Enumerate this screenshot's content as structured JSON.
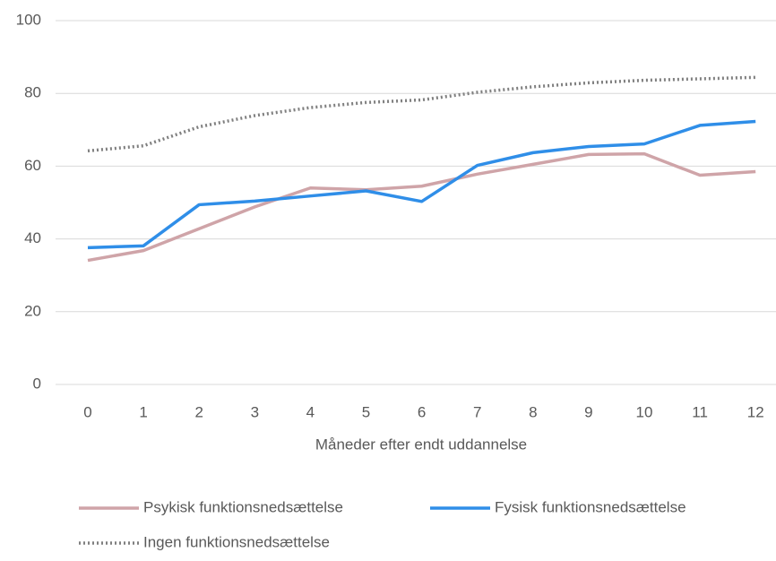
{
  "chart_data": {
    "type": "line",
    "x_label": "Måneder efter endt uddannelse",
    "x": [
      0,
      1,
      2,
      3,
      4,
      5,
      6,
      7,
      8,
      9,
      10,
      11,
      12
    ],
    "series": [
      {
        "name": "Psykisk funktionsnedsættelse",
        "color": "#cfa4a8",
        "dash": "solid",
        "values": [
          34.1,
          36.8,
          42.8,
          48.8,
          54.0,
          53.5,
          54.5,
          57.8,
          60.5,
          63.2,
          63.4,
          57.5,
          58.5
        ]
      },
      {
        "name": "Fysisk funktionsnedsættelse",
        "color": "#2f8ee8",
        "dash": "solid",
        "values": [
          37.6,
          38.1,
          49.4,
          50.4,
          51.8,
          53.2,
          50.3,
          60.2,
          63.7,
          65.4,
          66.1,
          71.2,
          72.3
        ]
      },
      {
        "name": "Ingen funktionsnedsættelse",
        "color": "#7f7f7f",
        "dash": "dotted",
        "values": [
          64.2,
          65.6,
          70.8,
          73.9,
          76.1,
          77.5,
          78.2,
          80.3,
          81.8,
          82.9,
          83.6,
          84.0,
          84.4
        ]
      }
    ],
    "ylim": [
      0,
      100
    ],
    "yticks": [
      0,
      20,
      40,
      60,
      80,
      100
    ],
    "grid": true,
    "legend": "bottom"
  }
}
